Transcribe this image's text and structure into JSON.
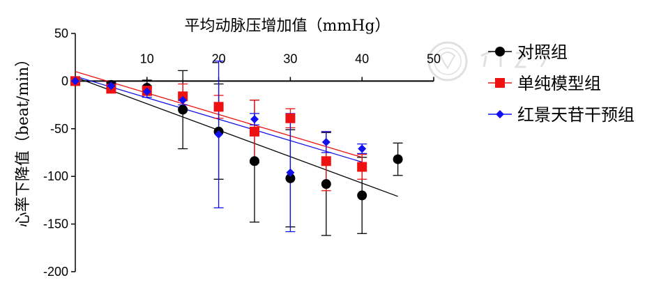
{
  "chart_data": {
    "type": "scatter",
    "title": "",
    "xlabel": "平均动脉压增加值（mmHg）",
    "ylabel": "心率下降值（beat/min）",
    "xlim": [
      0,
      50
    ],
    "ylim": [
      -200,
      50
    ],
    "x_ticks": [
      10,
      20,
      30,
      40,
      50
    ],
    "y_ticks": [
      50,
      0,
      -50,
      -100,
      -150,
      -200
    ],
    "legend_position": "right",
    "grid": false,
    "series": [
      {
        "name": "对照组",
        "color": "#000000",
        "marker": "circle",
        "points": [
          {
            "x": 0,
            "y": 0,
            "err": 0
          },
          {
            "x": 5,
            "y": -4,
            "err": 3
          },
          {
            "x": 10,
            "y": -7,
            "err": 8
          },
          {
            "x": 15,
            "y": -30,
            "err": 41
          },
          {
            "x": 20,
            "y": -53,
            "err": 50
          },
          {
            "x": 25,
            "y": -84,
            "err": 64
          },
          {
            "x": 30,
            "y": -102,
            "err": 51
          },
          {
            "x": 35,
            "y": -108,
            "err": 54
          },
          {
            "x": 40,
            "y": -120,
            "err": 40
          },
          {
            "x": 45,
            "y": -82,
            "err": 17
          }
        ],
        "trend": {
          "x": [
            0,
            45
          ],
          "y": [
            4,
            -121
          ]
        }
      },
      {
        "name": "单纯模型组",
        "color": "#ee1111",
        "marker": "square",
        "points": [
          {
            "x": 0,
            "y": 0,
            "err": 0
          },
          {
            "x": 5,
            "y": -8,
            "err": 4
          },
          {
            "x": 10,
            "y": -10,
            "err": 5
          },
          {
            "x": 15,
            "y": -16,
            "err": 13
          },
          {
            "x": 20,
            "y": -27,
            "err": 12
          },
          {
            "x": 25,
            "y": -53,
            "err": 33
          },
          {
            "x": 30,
            "y": -39,
            "err": 10
          },
          {
            "x": 35,
            "y": -84,
            "err": 31
          },
          {
            "x": 40,
            "y": -90,
            "err": 13
          }
        ],
        "trend": {
          "x": [
            0,
            40
          ],
          "y": [
            10,
            -80
          ]
        }
      },
      {
        "name": "红景天苷干预组",
        "color": "#1111ee",
        "marker": "diamond",
        "points": [
          {
            "x": 0,
            "y": 0,
            "err": 0
          },
          {
            "x": 5,
            "y": -5,
            "err": 3
          },
          {
            "x": 10,
            "y": -11,
            "err": 6
          },
          {
            "x": 15,
            "y": -20,
            "err": 5
          },
          {
            "x": 20,
            "y": -56,
            "err": 77
          },
          {
            "x": 25,
            "y": -40,
            "err": 6
          },
          {
            "x": 30,
            "y": -96,
            "err": 62
          },
          {
            "x": 35,
            "y": -64,
            "err": 11
          },
          {
            "x": 40,
            "y": -71,
            "err": 5
          }
        ],
        "trend": {
          "x": [
            0,
            40
          ],
          "y": [
            5,
            -85
          ]
        }
      }
    ]
  }
}
